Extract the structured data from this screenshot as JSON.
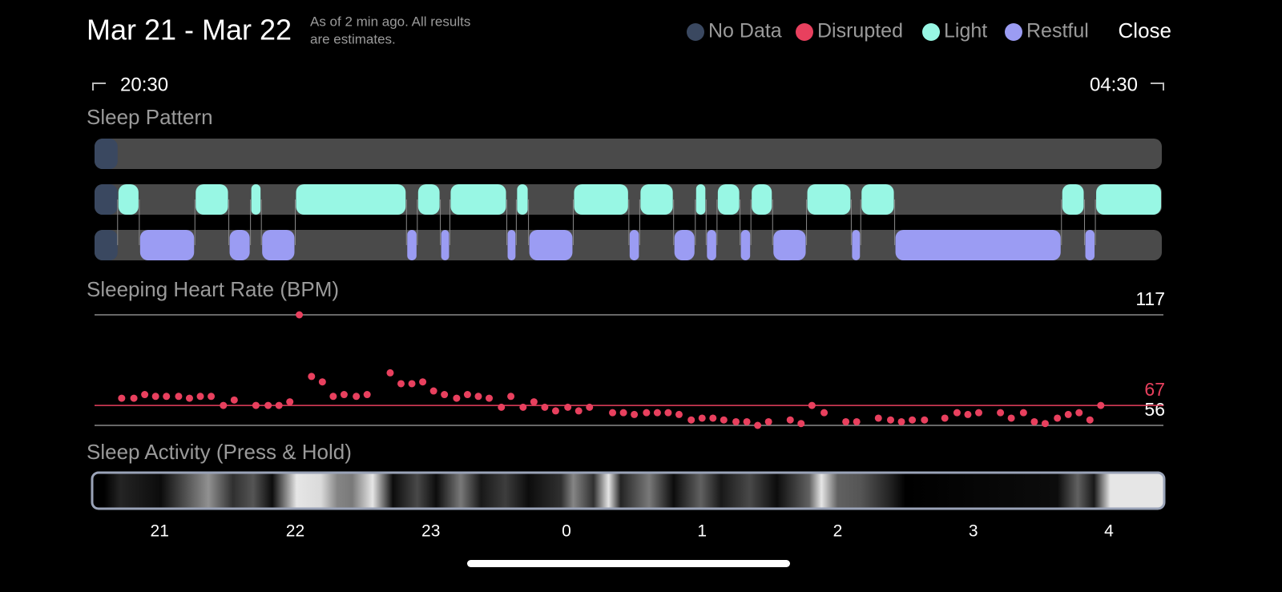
{
  "header": {
    "title": "Mar 21 - Mar 22",
    "note": [
      "As of 2 min ago. All results",
      "are estimates."
    ],
    "close": "Close"
  },
  "legend": [
    {
      "name": "No Data",
      "color": "#3a4860"
    },
    {
      "name": "Disrupted",
      "color": "#e8405e"
    },
    {
      "name": "Light",
      "color": "#98f7e4"
    },
    {
      "name": "Restful",
      "color": "#9b9cf3"
    }
  ],
  "range": {
    "start": "20:30",
    "end": "04:30"
  },
  "x_axis": {
    "xlim": [
      20.52,
      28.39
    ],
    "xticks": [
      21,
      22,
      23,
      {
        "value": 24,
        "label": "0"
      },
      {
        "value": 25,
        "label": "1"
      },
      {
        "value": 26,
        "label": "2"
      },
      {
        "value": 27,
        "label": "3"
      },
      {
        "value": 28,
        "label": "4"
      }
    ]
  },
  "sleep_pattern": {
    "title": "Sleep Pattern",
    "no_data": [
      20.52,
      20.69
    ],
    "disrupted": [],
    "light": [
      [
        20.69,
        20.85
      ],
      [
        21.26,
        21.51
      ],
      [
        21.67,
        21.75
      ],
      [
        22.0,
        22.82
      ],
      [
        22.9,
        23.07
      ],
      [
        23.14,
        23.56
      ],
      [
        23.63,
        23.72
      ],
      [
        24.05,
        24.46
      ],
      [
        24.54,
        24.79
      ],
      [
        24.95,
        25.03
      ],
      [
        25.11,
        25.28
      ],
      [
        25.36,
        25.52
      ],
      [
        25.77,
        26.1
      ],
      [
        26.17,
        26.42
      ],
      [
        27.65,
        27.82
      ],
      [
        27.9,
        28.39
      ]
    ],
    "restful": [
      [
        20.85,
        21.26
      ],
      [
        21.51,
        21.67
      ],
      [
        21.75,
        22.0
      ],
      [
        22.82,
        22.9
      ],
      [
        23.07,
        23.14
      ],
      [
        23.56,
        23.63
      ],
      [
        23.72,
        24.05
      ],
      [
        24.46,
        24.54
      ],
      [
        24.79,
        24.95
      ],
      [
        25.03,
        25.11
      ],
      [
        25.28,
        25.36
      ],
      [
        25.52,
        25.77
      ],
      [
        26.1,
        26.17
      ],
      [
        26.42,
        27.65
      ],
      [
        27.82,
        27.9
      ]
    ]
  },
  "heart_rate": {
    "title": "Sleeping Heart Rate (BPM)",
    "type": "scatter",
    "color": "#e8405e",
    "ylim": [
      56,
      117
    ],
    "yticks": [
      56,
      117
    ],
    "average": 67,
    "x": [
      20.72,
      20.81,
      20.89,
      20.97,
      21.05,
      21.14,
      21.22,
      21.3,
      21.38,
      21.47,
      21.55,
      21.71,
      21.8,
      21.88,
      21.96,
      22.03,
      22.12,
      22.2,
      22.28,
      22.36,
      22.45,
      22.53,
      22.7,
      22.78,
      22.86,
      22.94,
      23.02,
      23.1,
      23.19,
      23.27,
      23.35,
      23.43,
      23.52,
      23.59,
      23.68,
      23.76,
      23.84,
      23.92,
      24.01,
      24.09,
      24.17,
      24.34,
      24.42,
      24.5,
      24.59,
      24.67,
      24.75,
      24.83,
      24.92,
      25.0,
      25.08,
      25.16,
      25.25,
      25.33,
      25.41,
      25.49,
      25.65,
      25.73,
      25.81,
      25.9,
      26.06,
      26.14,
      26.3,
      26.39,
      26.47,
      26.55,
      26.64,
      26.79,
      26.88,
      26.96,
      27.04,
      27.2,
      27.28,
      27.37,
      27.45,
      27.53,
      27.62,
      27.7,
      27.78,
      27.86,
      27.94
    ],
    "values": [
      71,
      71,
      73,
      72,
      72,
      72,
      71,
      72,
      72,
      67,
      70,
      67,
      67,
      67,
      69,
      117,
      83,
      80,
      72,
      73,
      72,
      73,
      85,
      79,
      79,
      80,
      75,
      73,
      71,
      73,
      72,
      71,
      66,
      72,
      66,
      69,
      66,
      64,
      66,
      64,
      66,
      63,
      63,
      62,
      63,
      63,
      63,
      62,
      59,
      60,
      60,
      59,
      58,
      58,
      56,
      58,
      59,
      57,
      67,
      63,
      58,
      58,
      60,
      59,
      58,
      59,
      59,
      60,
      63,
      62,
      63,
      63,
      60,
      63,
      58,
      57,
      60,
      62,
      63,
      59,
      67
    ]
  },
  "activity": {
    "title": "Sleep Activity (Press & Hold)",
    "hours": [
      20.59,
      20.71,
      21.01,
      21.36,
      21.54,
      21.69,
      21.83,
      22.01,
      22.19,
      22.31,
      22.42,
      22.57,
      22.72,
      22.9,
      23.04,
      23.22,
      23.37,
      23.55,
      23.72,
      23.96,
      24.05,
      24.2,
      24.31,
      24.4,
      24.61,
      24.79,
      24.99,
      25.14,
      25.35,
      25.55,
      25.79,
      25.88,
      26.0,
      26.17,
      26.38,
      26.5,
      27.62,
      27.77,
      27.89,
      28.01,
      28.39
    ],
    "levels": [
      0,
      15,
      5,
      60,
      20,
      35,
      5,
      95,
      90,
      55,
      50,
      95,
      5,
      30,
      5,
      50,
      10,
      25,
      5,
      20,
      55,
      20,
      95,
      15,
      50,
      5,
      40,
      10,
      30,
      5,
      40,
      95,
      40,
      35,
      15,
      0,
      5,
      40,
      10,
      95,
      95
    ]
  }
}
